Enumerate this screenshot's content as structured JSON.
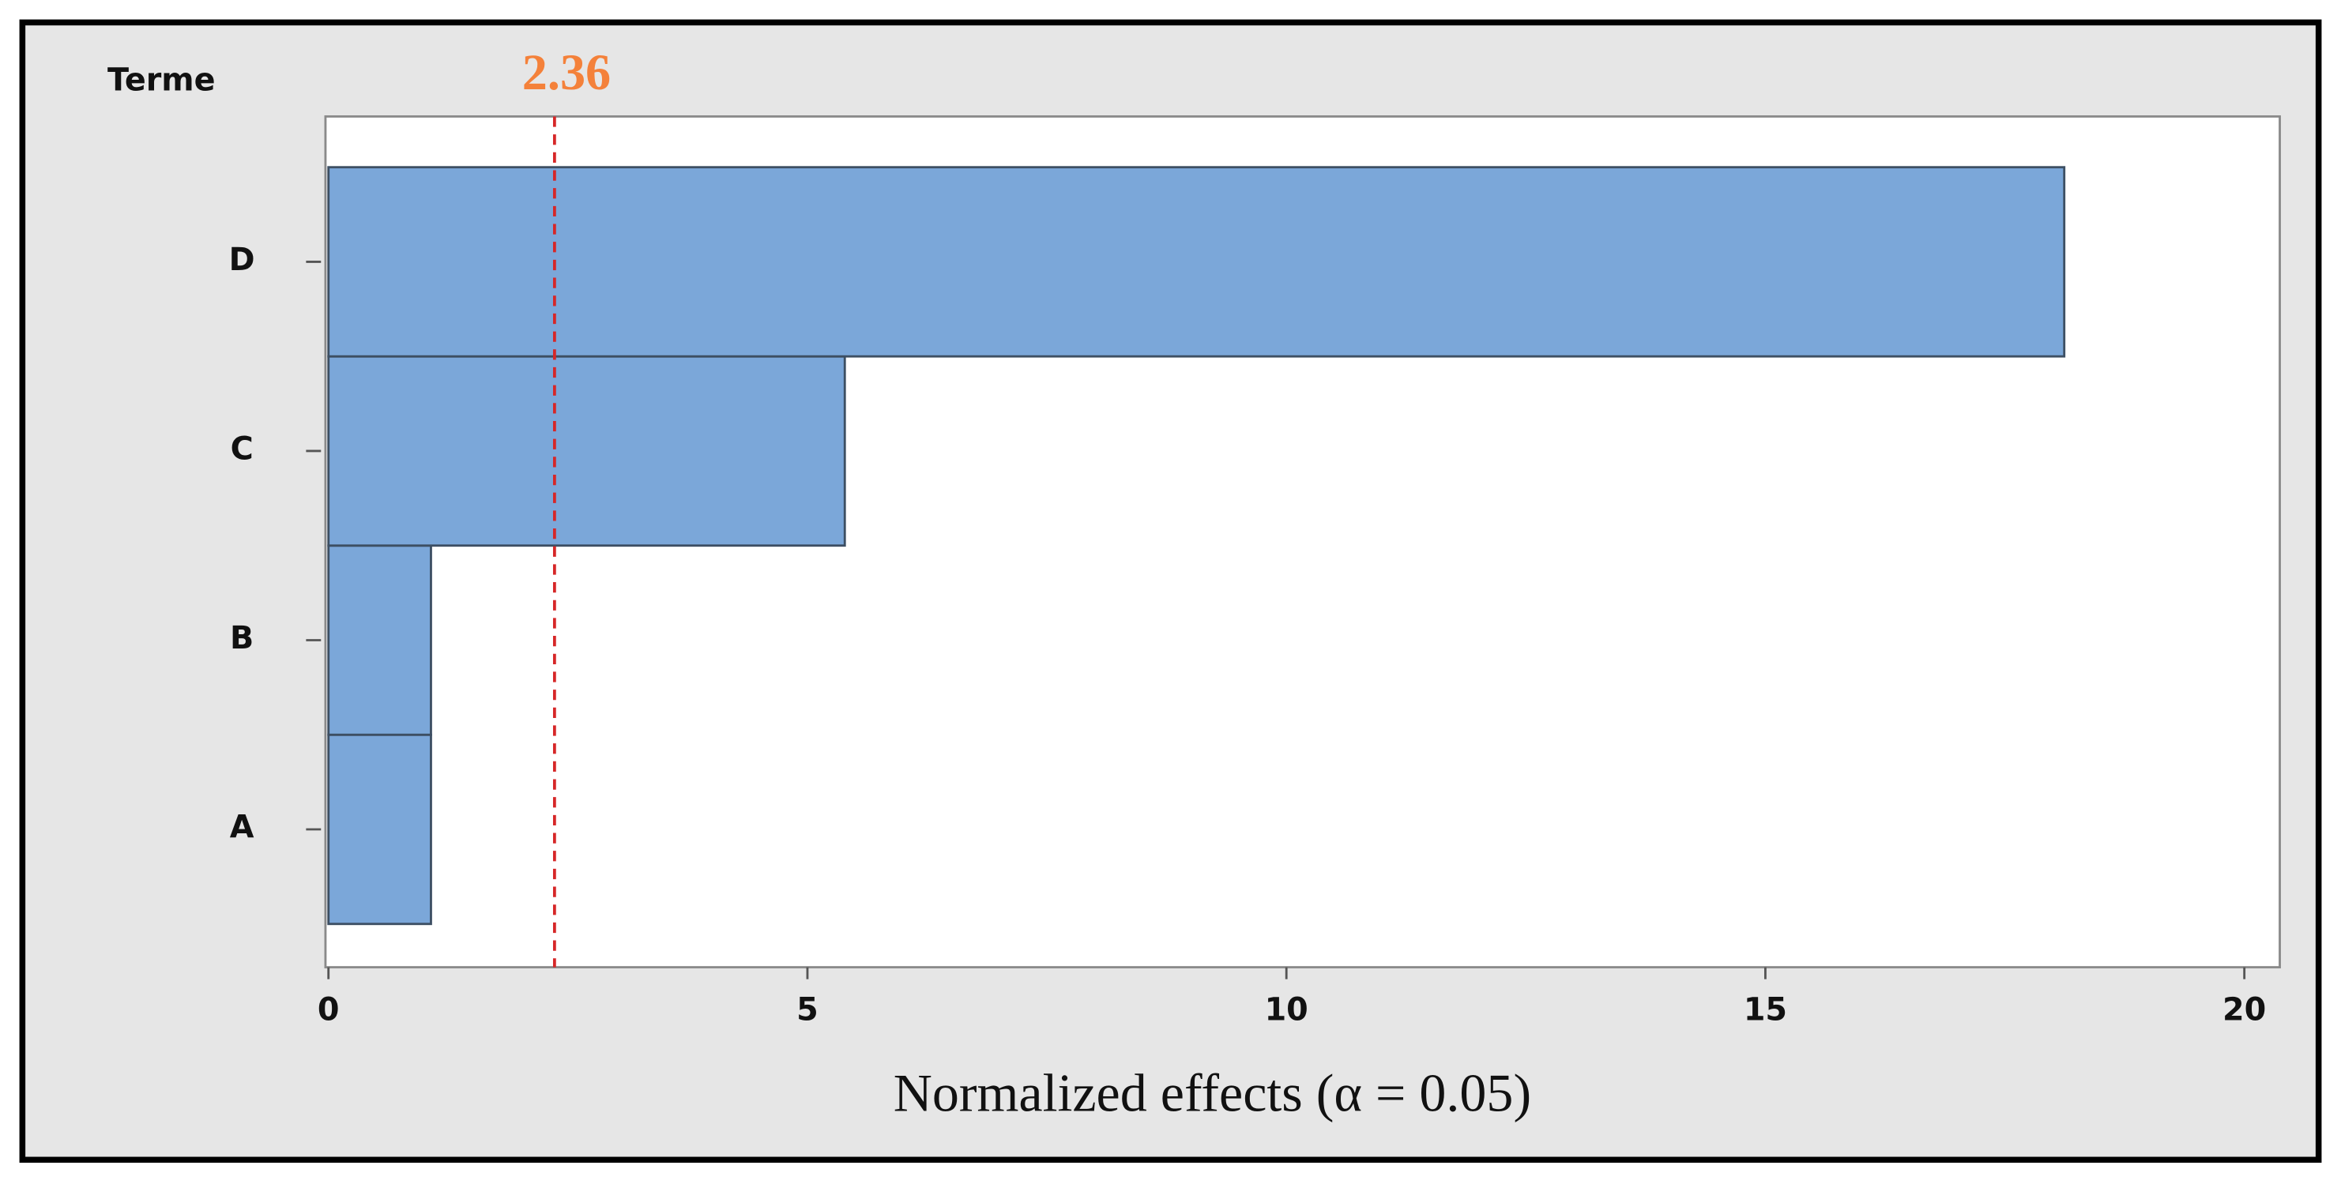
{
  "chart_data": {
    "type": "pareto",
    "y_axis_title": "Terme",
    "x_axis_label": "Normalized effects (α = 0.05)",
    "categories": [
      "A",
      "B",
      "C",
      "D"
    ],
    "values": [
      1.07,
      1.07,
      5.39,
      18.12
    ],
    "color": "#7ba7d9",
    "reference_line": 2.36,
    "reference_color": "#d62728",
    "reference_label_color": "#f4813a",
    "xlim": [
      0,
      20.37
    ],
    "xticks": [
      0,
      5,
      10,
      15,
      20
    ]
  }
}
